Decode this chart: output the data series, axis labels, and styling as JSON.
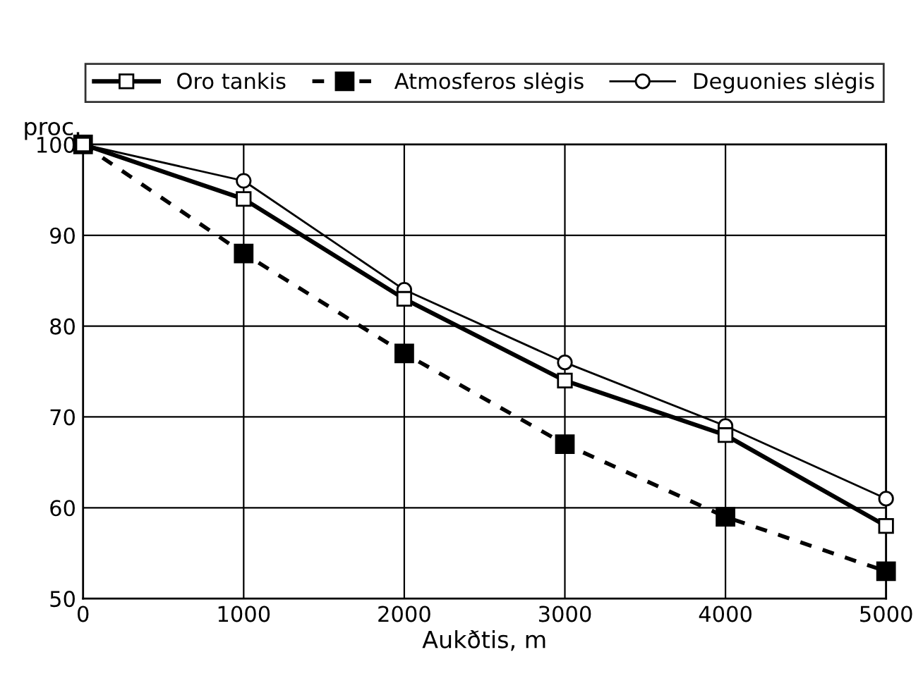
{
  "chart_data": {
    "type": "line",
    "xlabel": "Aukðtis, m",
    "ylabel": "proc.",
    "x": [
      0,
      1000,
      2000,
      3000,
      4000,
      5000
    ],
    "series": [
      {
        "name": "Oro tankis",
        "color": "#000000",
        "values": [
          100,
          94,
          83,
          74,
          68,
          58
        ],
        "marker": "square",
        "line_style": "solid"
      },
      {
        "name": "Atmosferos slėgis",
        "color": "#000000",
        "values": [
          100,
          88,
          77,
          67,
          59,
          53
        ],
        "marker": "square",
        "line_style": "dashed"
      },
      {
        "name": "Deguonies slėgis",
        "color": "#000000",
        "values": [
          100,
          96,
          84,
          76,
          69,
          61
        ],
        "marker": "circle",
        "line_style": "solid"
      }
    ],
    "xlim": [
      0,
      5000
    ],
    "xticks": [
      0,
      1000,
      2000,
      3000,
      4000,
      5000
    ],
    "ylim": [
      50,
      100
    ],
    "yticks": [
      50,
      60,
      70,
      80,
      90,
      100
    ],
    "grid": true,
    "legend": "top"
  }
}
